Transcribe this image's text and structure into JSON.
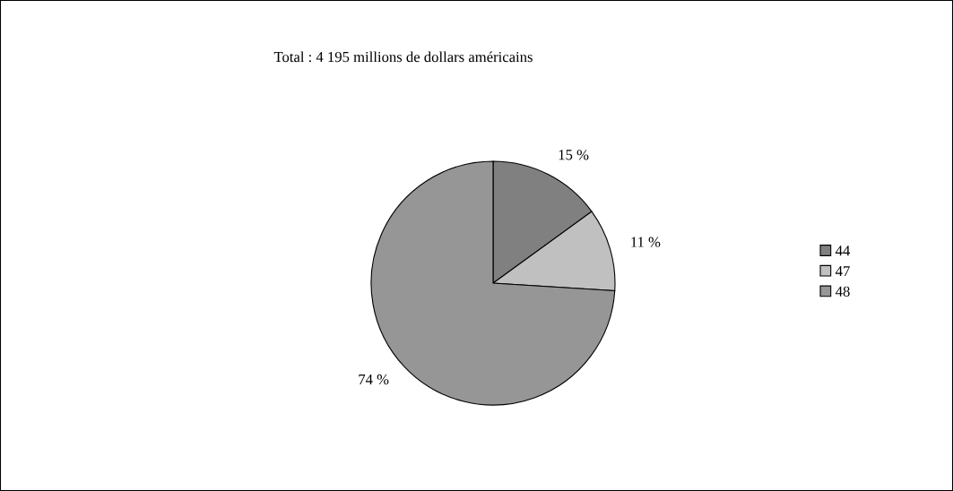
{
  "chart_data": {
    "type": "pie",
    "title": "Total : 4 195 millions de dollars américains",
    "categories": [
      "44",
      "47",
      "48"
    ],
    "values": [
      15,
      11,
      74
    ],
    "value_labels": [
      "15 %",
      "11 %",
      "74 %"
    ],
    "colors": [
      "#808080",
      "#c0c0c0",
      "#969696"
    ],
    "legend": "right"
  }
}
